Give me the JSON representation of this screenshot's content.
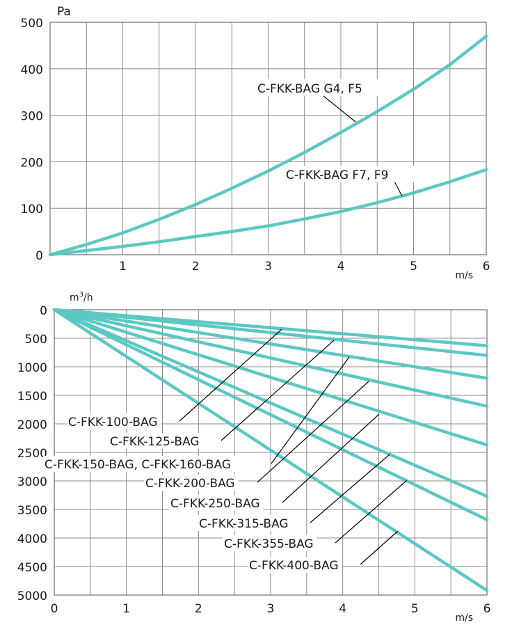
{
  "chart_data": [
    {
      "type": "line",
      "x_unit": "m/s",
      "y_unit": "Pa",
      "xlim": [
        0,
        6
      ],
      "ylim": [
        0,
        500
      ],
      "x_ticks": [
        "1",
        "2",
        "3",
        "4",
        "5",
        "6"
      ],
      "y_ticks": [
        "0",
        "100",
        "200",
        "300",
        "400",
        "500"
      ],
      "grid": true,
      "series_color": "#5cc8c2",
      "series": [
        {
          "name": "C-FKK-BAG G4, F5",
          "x": [
            0,
            0.5,
            1,
            1.5,
            2,
            2.5,
            3,
            3.5,
            4,
            4.5,
            5,
            5.5,
            6
          ],
          "y": [
            0,
            22,
            47,
            76,
            108,
            143,
            180,
            220,
            263,
            308,
            356,
            409,
            470
          ]
        },
        {
          "name": "C-FKK-BAG  F7, F9",
          "x": [
            0,
            0.5,
            1,
            1.5,
            2,
            2.5,
            3,
            3.5,
            4,
            4.5,
            5,
            5.5,
            6
          ],
          "y": [
            0,
            9,
            18,
            28,
            39,
            50,
            62,
            77,
            93,
            112,
            133,
            157,
            183
          ]
        }
      ]
    },
    {
      "type": "line",
      "x_unit": "m/s",
      "y_unit": "m3/h",
      "y_reversed": true,
      "xlim": [
        0,
        6
      ],
      "ylim": [
        0,
        5000
      ],
      "x_ticks": [
        "0",
        "1",
        "2",
        "3",
        "4",
        "5",
        "6"
      ],
      "y_ticks": [
        "0",
        "500",
        "1000",
        "1500",
        "2000",
        "2500",
        "3000",
        "3500",
        "4000",
        "4500",
        "5000"
      ],
      "grid": true,
      "series_color": "#5cc8c2",
      "series": [
        {
          "name": "C-FKK-100-BAG",
          "x": [
            0,
            6
          ],
          "y": [
            0,
            630
          ]
        },
        {
          "name": "C-FKK-125-BAG",
          "x": [
            0,
            6
          ],
          "y": [
            0,
            800
          ]
        },
        {
          "name": "C-FKK-150-BAG, C-FKK-160-BAG",
          "x": [
            0,
            6
          ],
          "y": [
            0,
            1200
          ]
        },
        {
          "name": "C-FKK-200-BAG",
          "x": [
            0,
            6
          ],
          "y": [
            0,
            1690
          ]
        },
        {
          "name": "C-FKK-250-BAG",
          "x": [
            0,
            6
          ],
          "y": [
            0,
            2370
          ]
        },
        {
          "name": "C-FKK-315-BAG",
          "x": [
            0,
            6
          ],
          "y": [
            0,
            3270
          ]
        },
        {
          "name": "C-FKK-355-BAG",
          "x": [
            0,
            6
          ],
          "y": [
            0,
            3680
          ]
        },
        {
          "name": "C-FKK-400-BAG",
          "x": [
            0,
            6
          ],
          "y": [
            0,
            4920
          ]
        }
      ]
    }
  ]
}
